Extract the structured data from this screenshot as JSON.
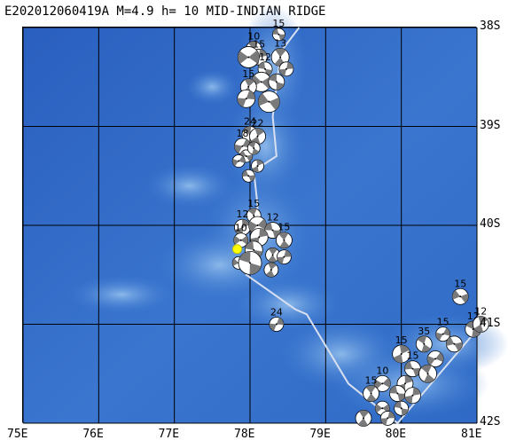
{
  "title": "E202012060419A M=4.9 h= 10 MID-INDIAN RIDGE",
  "lat_labels": [
    {
      "text": "38S",
      "lat": -38
    },
    {
      "text": "39S",
      "lat": -39
    },
    {
      "text": "40S",
      "lat": -40
    },
    {
      "text": "41S",
      "lat": -41
    },
    {
      "text": "42S",
      "lat": -42
    }
  ],
  "lon_labels": [
    {
      "text": "75E",
      "lon": 75
    },
    {
      "text": "76E",
      "lon": 76
    },
    {
      "text": "77E",
      "lon": 77
    },
    {
      "text": "78E",
      "lon": 78
    },
    {
      "text": "79E",
      "lon": 79
    },
    {
      "text": "80E",
      "lon": 80
    },
    {
      "text": "81E",
      "lon": 81
    }
  ],
  "extent": {
    "lon_min": 75,
    "lon_max": 81,
    "lat_min": -42,
    "lat_max": -38
  },
  "colors": {
    "ocean_deep": "#2a64c0",
    "ocean_mid": "#3d7ad0",
    "ridge": "#5b97dc",
    "ridge_light": "#79ace6",
    "plate_boundary": "#d8e0f0",
    "grid": "#000000",
    "mechanism_dark": "#7a7a7a",
    "mechanism_light": "#ffffff",
    "event_marker": "#ffff00"
  },
  "plate_boundary": [
    [
      78.65,
      -38.0
    ],
    [
      78.4,
      -38.25
    ],
    [
      78.35,
      -38.6
    ],
    [
      78.3,
      -38.9
    ],
    [
      78.35,
      -39.3
    ],
    [
      78.05,
      -39.45
    ],
    [
      78.1,
      -39.8
    ],
    [
      78.05,
      -40.3
    ],
    [
      77.95,
      -40.5
    ],
    [
      78.6,
      -40.85
    ],
    [
      78.75,
      -40.9
    ],
    [
      79.3,
      -41.6
    ],
    [
      79.95,
      -42.0
    ],
    [
      80.95,
      -41.1
    ]
  ],
  "event": {
    "lon": 77.83,
    "lat": -40.24
  },
  "mechanisms": [
    {
      "lon": 78.38,
      "lat": -38.07,
      "label": "15",
      "size": 7
    },
    {
      "lon": 78.05,
      "lat": -38.22,
      "label": "10",
      "size": 9
    },
    {
      "lon": 78.12,
      "lat": -38.3,
      "label": "15",
      "size": 9
    },
    {
      "lon": 77.98,
      "lat": -38.3,
      "label": "",
      "size": 12
    },
    {
      "lon": 78.2,
      "lat": -38.42,
      "label": "12",
      "size": 8
    },
    {
      "lon": 78.4,
      "lat": -38.3,
      "label": "13",
      "size": 10
    },
    {
      "lon": 78.48,
      "lat": -38.42,
      "label": "",
      "size": 8
    },
    {
      "lon": 78.15,
      "lat": -38.55,
      "label": "",
      "size": 11
    },
    {
      "lon": 78.35,
      "lat": -38.55,
      "label": "",
      "size": 9
    },
    {
      "lon": 77.98,
      "lat": -38.6,
      "label": "15",
      "size": 9
    },
    {
      "lon": 77.95,
      "lat": -38.72,
      "label": "",
      "size": 10
    },
    {
      "lon": 78.25,
      "lat": -38.75,
      "label": "",
      "size": 12
    },
    {
      "lon": 78.0,
      "lat": -39.08,
      "label": "24",
      "size": 9
    },
    {
      "lon": 78.1,
      "lat": -39.1,
      "label": "22",
      "size": 9
    },
    {
      "lon": 77.9,
      "lat": -39.2,
      "label": "18",
      "size": 9
    },
    {
      "lon": 77.95,
      "lat": -39.3,
      "label": "",
      "size": 7
    },
    {
      "lon": 78.05,
      "lat": -39.22,
      "label": "",
      "size": 7
    },
    {
      "lon": 78.1,
      "lat": -39.4,
      "label": "",
      "size": 7
    },
    {
      "lon": 77.85,
      "lat": -39.35,
      "label": "",
      "size": 7
    },
    {
      "lon": 77.98,
      "lat": -39.5,
      "label": "",
      "size": 7
    },
    {
      "lon": 78.05,
      "lat": -39.9,
      "label": "15",
      "size": 8
    },
    {
      "lon": 77.9,
      "lat": -40.02,
      "label": "12",
      "size": 9
    },
    {
      "lon": 78.1,
      "lat": -40.0,
      "label": "",
      "size": 10
    },
    {
      "lon": 78.3,
      "lat": -40.05,
      "label": "12",
      "size": 9
    },
    {
      "lon": 78.45,
      "lat": -40.15,
      "label": "15",
      "size": 9
    },
    {
      "lon": 78.12,
      "lat": -40.12,
      "label": "",
      "size": 10
    },
    {
      "lon": 77.88,
      "lat": -40.15,
      "label": "10",
      "size": 8
    },
    {
      "lon": 78.05,
      "lat": -40.25,
      "label": "",
      "size": 10
    },
    {
      "lon": 78.3,
      "lat": -40.3,
      "label": "",
      "size": 8
    },
    {
      "lon": 78.45,
      "lat": -40.32,
      "label": "",
      "size": 8
    },
    {
      "lon": 77.85,
      "lat": -40.38,
      "label": "",
      "size": 7
    },
    {
      "lon": 78.0,
      "lat": -40.38,
      "label": "",
      "size": 13
    },
    {
      "lon": 78.28,
      "lat": -40.45,
      "label": "",
      "size": 8
    },
    {
      "lon": 78.35,
      "lat": -41.0,
      "label": "24",
      "size": 8
    },
    {
      "lon": 80.78,
      "lat": -40.72,
      "label": "15",
      "size": 9
    },
    {
      "lon": 80.95,
      "lat": -41.05,
      "label": "12",
      "size": 9
    },
    {
      "lon": 81.05,
      "lat": -41.0,
      "label": "12",
      "size": 9
    },
    {
      "lon": 80.55,
      "lat": -41.1,
      "label": "15",
      "size": 8
    },
    {
      "lon": 80.7,
      "lat": -41.2,
      "label": "",
      "size": 9
    },
    {
      "lon": 80.3,
      "lat": -41.2,
      "label": "35",
      "size": 9
    },
    {
      "lon": 80.0,
      "lat": -41.3,
      "label": "15",
      "size": 10
    },
    {
      "lon": 80.45,
      "lat": -41.35,
      "label": "",
      "size": 9
    },
    {
      "lon": 80.15,
      "lat": -41.45,
      "label": "15",
      "size": 9
    },
    {
      "lon": 80.35,
      "lat": -41.5,
      "label": "",
      "size": 10
    },
    {
      "lon": 80.05,
      "lat": -41.6,
      "label": "",
      "size": 9
    },
    {
      "lon": 79.75,
      "lat": -41.6,
      "label": "10",
      "size": 9
    },
    {
      "lon": 79.95,
      "lat": -41.7,
      "label": "",
      "size": 9
    },
    {
      "lon": 79.6,
      "lat": -41.7,
      "label": "15",
      "size": 9
    },
    {
      "lon": 80.15,
      "lat": -41.72,
      "label": "",
      "size": 9
    },
    {
      "lon": 79.75,
      "lat": -41.85,
      "label": "",
      "size": 8
    },
    {
      "lon": 80.0,
      "lat": -41.85,
      "label": "",
      "size": 8
    },
    {
      "lon": 79.5,
      "lat": -41.95,
      "label": "",
      "size": 9
    },
    {
      "lon": 79.82,
      "lat": -41.95,
      "label": "",
      "size": 8
    }
  ]
}
